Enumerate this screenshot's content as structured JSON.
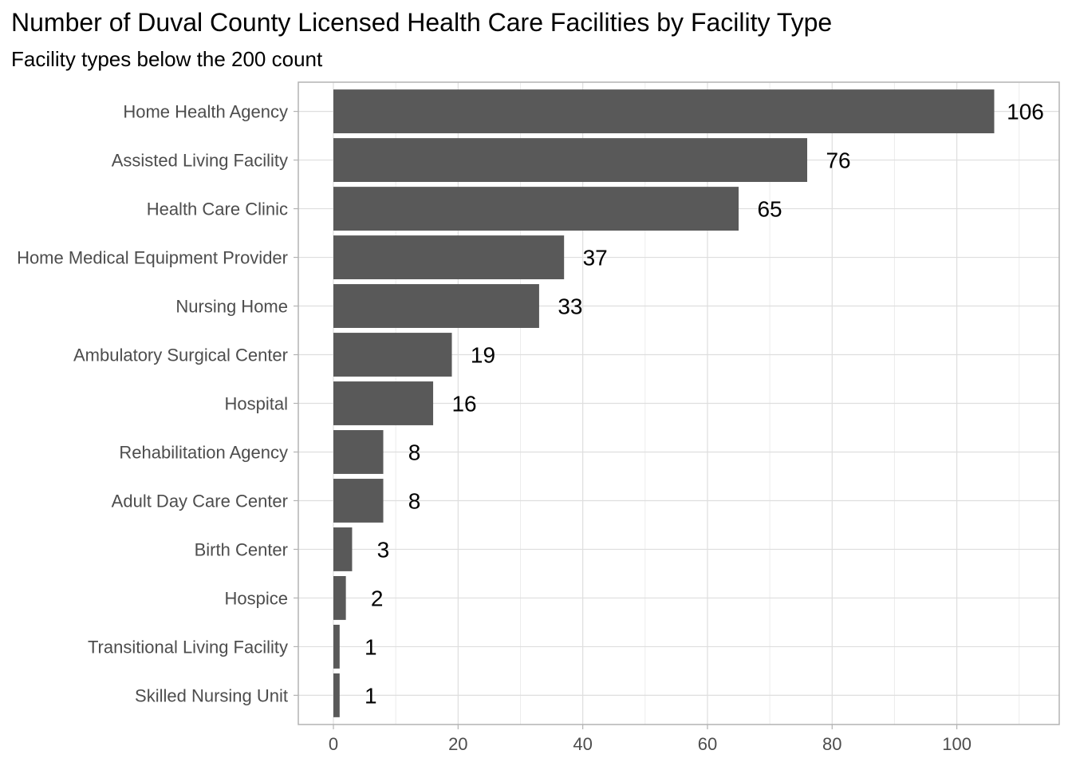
{
  "title": "Number of Duval County Licensed Health Care Facilities by Facility Type",
  "subtitle": "Facility types below the 200 count",
  "chart_data": {
    "type": "bar",
    "orientation": "horizontal",
    "title": "Number of Duval County Licensed Health Care Facilities by Facility Type",
    "subtitle": "Facility types below the 200 count",
    "xlabel": "",
    "ylabel": "",
    "categories": [
      "Home Health Agency",
      "Assisted Living Facility",
      "Health Care Clinic",
      "Home Medical Equipment Provider",
      "Nursing Home",
      "Ambulatory Surgical Center",
      "Hospital",
      "Rehabilitation Agency",
      "Adult Day Care Center",
      "Birth Center",
      "Hospice",
      "Transitional Living Facility",
      "Skilled Nursing Unit"
    ],
    "values": [
      106,
      76,
      65,
      37,
      33,
      19,
      16,
      8,
      8,
      3,
      2,
      1,
      1
    ],
    "data_labels": [
      "106",
      "76",
      "65",
      "37",
      "33",
      "19",
      "16",
      "8",
      "8",
      "3",
      "2",
      "1",
      "1"
    ],
    "xlim": [
      -5.6,
      116.2
    ],
    "x_ticks": [
      0,
      20,
      40,
      60,
      80,
      100
    ],
    "x_tick_labels": [
      "0",
      "20",
      "40",
      "60",
      "80",
      "100"
    ],
    "grid": true,
    "legend": "none",
    "colors": {
      "bar": "#595959",
      "grid": "#dedede",
      "panel_border": "#b3b3b3",
      "text": "#4d4d4d"
    }
  }
}
